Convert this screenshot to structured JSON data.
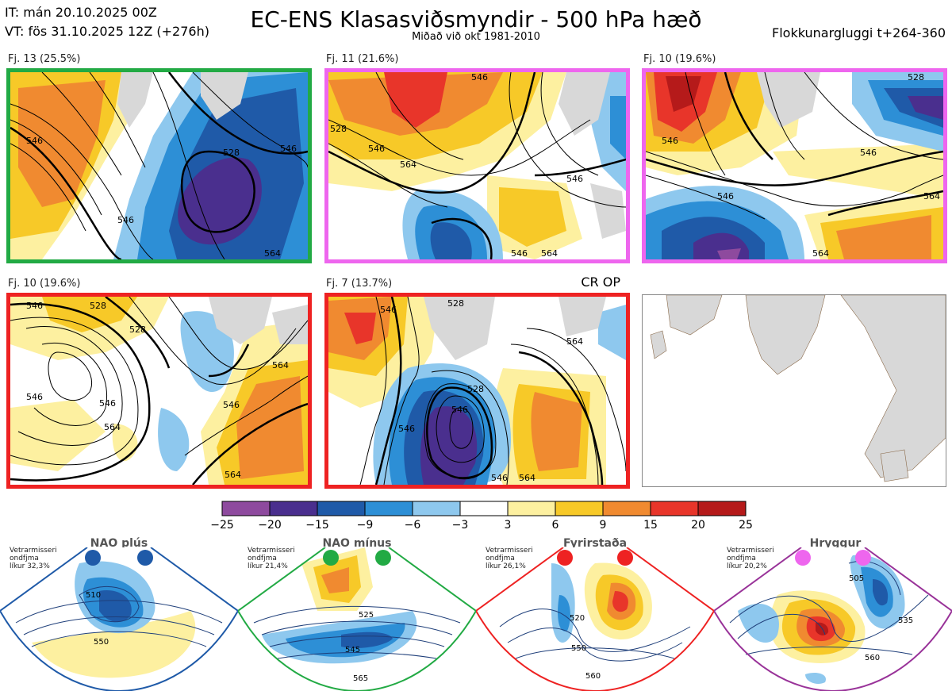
{
  "header": {
    "it_line": "IT: mán 20.10.2025 00Z",
    "vt_line": "VT: fös 31.10.2025 12Z  (+276h)",
    "title": "EC-ENS Klasasviðsmyndir - 500 hPa hæð",
    "subtitle": "Miðað við okt 1981-2010",
    "window": "Flokkunargluggi t+264-360"
  },
  "panels": [
    {
      "label": "Fj. 13 (25.5%)",
      "border_color": "#22aa44",
      "contours": [
        "546",
        "528",
        "546",
        "564",
        "546"
      ]
    },
    {
      "label": "Fj. 11 (21.6%)",
      "border_color": "#ee66ee",
      "contours": [
        "546",
        "528",
        "546",
        "564",
        "546",
        "546",
        "564"
      ]
    },
    {
      "label": "Fj. 10 (19.6%)",
      "border_color": "#ee66ee",
      "contours": [
        "528",
        "546",
        "546",
        "564",
        "546",
        "564"
      ]
    },
    {
      "label": "Fj. 10 (19.6%)",
      "border_color": "#ee2222",
      "contours": [
        "546",
        "528",
        "528",
        "546",
        "546",
        "564",
        "546",
        "564",
        "564"
      ]
    },
    {
      "label": "Fj. 7 (13.7%)",
      "border_color": "#ee2222",
      "contours": [
        "546",
        "528",
        "528",
        "546",
        "546",
        "564",
        "546",
        "564"
      ]
    }
  ],
  "cr_op": "CR OP",
  "colorbar": {
    "ticks": [
      "−25",
      "−20",
      "−15",
      "−9",
      "−6",
      "−3",
      "3",
      "6",
      "9",
      "15",
      "20",
      "25"
    ],
    "colors": [
      "#8e4a9e",
      "#4a2f8e",
      "#1f5aa8",
      "#2d8fd6",
      "#8ec8ee",
      "#ffffff",
      "#fdf0a0",
      "#f7c928",
      "#f08a30",
      "#e8352a",
      "#b51a1a"
    ]
  },
  "regimes": [
    {
      "name": "NAO plús",
      "dot_color": "#1f5aa8",
      "border_color": "#1f5aa8",
      "prob_lines": [
        "Vetrarmisseri",
        "ondfjma",
        "líkur 32,3%"
      ],
      "contours": [
        "510",
        "550"
      ]
    },
    {
      "name": "NAO mínus",
      "dot_color": "#22aa44",
      "border_color": "#22aa44",
      "prob_lines": [
        "Vetrarmisseri",
        "ondfjma",
        "líkur 21,4%"
      ],
      "contours": [
        "525",
        "545",
        "565"
      ]
    },
    {
      "name": "Fyrirstaða",
      "dot_color": "#ee2222",
      "border_color": "#ee2222",
      "prob_lines": [
        "Vetrarmisseri",
        "ondfjma",
        "líkur 26,1%"
      ],
      "contours": [
        "520",
        "550",
        "560"
      ]
    },
    {
      "name": "Hryggur",
      "dot_color": "#ee66ee",
      "border_color": "#993399",
      "prob_lines": [
        "Vetrarmisseri",
        "ondfjma",
        "líkur 20,2%"
      ],
      "contours": [
        "505",
        "535",
        "560"
      ]
    }
  ]
}
